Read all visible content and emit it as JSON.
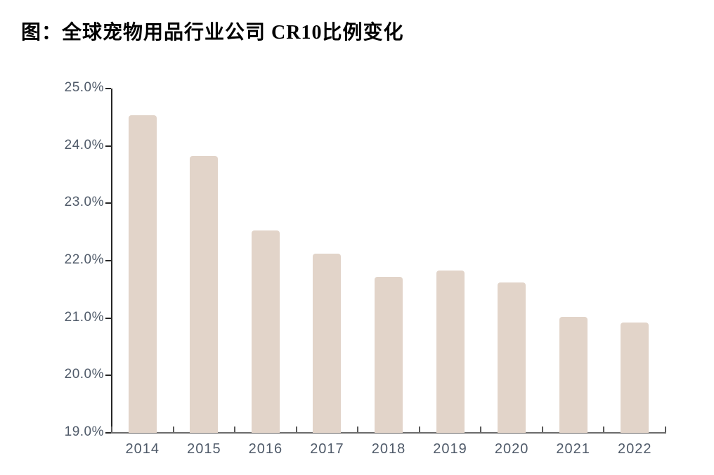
{
  "chart_data": {
    "type": "bar",
    "title": "图：全球宠物用品行业公司 CR10比例变化",
    "categories": [
      "2014",
      "2015",
      "2016",
      "2017",
      "2018",
      "2019",
      "2020",
      "2021",
      "2022"
    ],
    "values": [
      24.53,
      23.82,
      22.53,
      22.12,
      21.72,
      21.83,
      21.62,
      21.02,
      20.92
    ],
    "xlabel": "",
    "ylabel": "",
    "ylim": [
      19.0,
      25.0
    ],
    "yticks": [
      19,
      20,
      21,
      22,
      23,
      24,
      25
    ],
    "ytick_labels": [
      "19.0%",
      "20.0%",
      "21.0%",
      "22.0%",
      "23.0%",
      "24.0%",
      "25.0%"
    ],
    "grid": false,
    "legend_position": "none",
    "colors": {
      "bar_fill": "#e2d4c9",
      "y_axis": "#262626",
      "x_axis": "#6b6b6b",
      "tick_label": "#4f5a69",
      "title": "#000000"
    }
  }
}
